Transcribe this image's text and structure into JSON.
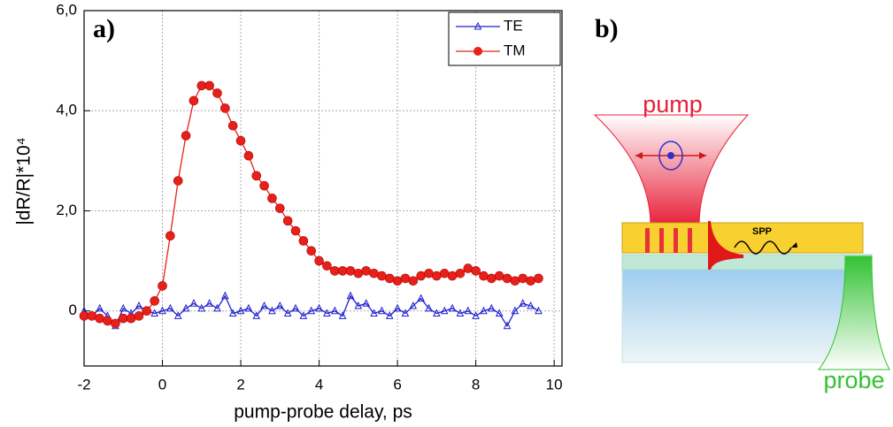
{
  "chart_data": {
    "type": "line",
    "panel_label": "a)",
    "x_label": "pump-probe delay, ps",
    "y_label": "|dR/R|*10⁴",
    "x": [
      -2.0,
      -1.8,
      -1.6,
      -1.4,
      -1.2,
      -1.0,
      -0.8,
      -0.6,
      -0.4,
      -0.2,
      0.0,
      0.2,
      0.4,
      0.6,
      0.8,
      1.0,
      1.2,
      1.4,
      1.6,
      1.8,
      2.0,
      2.2,
      2.4,
      2.6,
      2.8,
      3.0,
      3.2,
      3.4,
      3.6,
      3.8,
      4.0,
      4.2,
      4.4,
      4.6,
      4.8,
      5.0,
      5.2,
      5.4,
      5.6,
      5.8,
      6.0,
      6.2,
      6.4,
      6.6,
      6.8,
      7.0,
      7.2,
      7.4,
      7.6,
      7.8,
      8.0,
      8.2,
      8.4,
      8.6,
      8.8,
      9.0,
      9.2,
      9.4,
      9.6
    ],
    "series": [
      {
        "name": "TE",
        "color": "#1f1fd0",
        "marker": "triangle",
        "values": [
          0.0,
          -0.1,
          0.05,
          -0.1,
          -0.3,
          0.05,
          -0.05,
          0.1,
          0.0,
          -0.05,
          0.0,
          0.05,
          -0.1,
          0.05,
          0.15,
          0.05,
          0.15,
          0.05,
          0.3,
          -0.05,
          0.0,
          0.05,
          -0.1,
          0.1,
          0.0,
          0.1,
          -0.05,
          0.05,
          -0.1,
          0.0,
          0.05,
          -0.05,
          0.0,
          -0.1,
          0.3,
          0.1,
          0.15,
          -0.05,
          0.0,
          -0.1,
          0.05,
          -0.05,
          0.1,
          0.25,
          0.05,
          -0.05,
          0.0,
          0.05,
          -0.05,
          0.0,
          -0.1,
          0.0,
          0.05,
          -0.05,
          -0.3,
          0.0,
          0.15,
          0.1,
          0.0
        ]
      },
      {
        "name": "TM",
        "color": "#e8201a",
        "marker": "circle",
        "values": [
          -0.1,
          -0.1,
          -0.15,
          -0.2,
          -0.25,
          -0.15,
          -0.15,
          -0.1,
          0.0,
          0.2,
          0.5,
          1.5,
          2.6,
          3.5,
          4.2,
          4.5,
          4.5,
          4.35,
          4.05,
          3.7,
          3.4,
          3.1,
          2.7,
          2.5,
          2.25,
          2.05,
          1.8,
          1.6,
          1.4,
          1.2,
          1.0,
          0.9,
          0.8,
          0.8,
          0.8,
          0.75,
          0.8,
          0.75,
          0.7,
          0.65,
          0.6,
          0.65,
          0.6,
          0.7,
          0.75,
          0.7,
          0.75,
          0.7,
          0.75,
          0.85,
          0.8,
          0.7,
          0.65,
          0.7,
          0.65,
          0.6,
          0.65,
          0.6,
          0.65
        ]
      }
    ],
    "xlim": [
      -2,
      10.2
    ],
    "xticks": [
      -2,
      0,
      2,
      4,
      6,
      8,
      10
    ],
    "ylim": [
      -1.1,
      6
    ],
    "yticks": [
      0,
      {
        "value": 2,
        "label": "2,0"
      },
      {
        "value": 4,
        "label": "4,0"
      },
      {
        "value": 6,
        "label": "6,0"
      }
    ],
    "grid": true,
    "legend": "upper right"
  },
  "diagram": {
    "panel_label": "b)",
    "pump": "pump",
    "spp": "SPP",
    "probe": "probe"
  }
}
